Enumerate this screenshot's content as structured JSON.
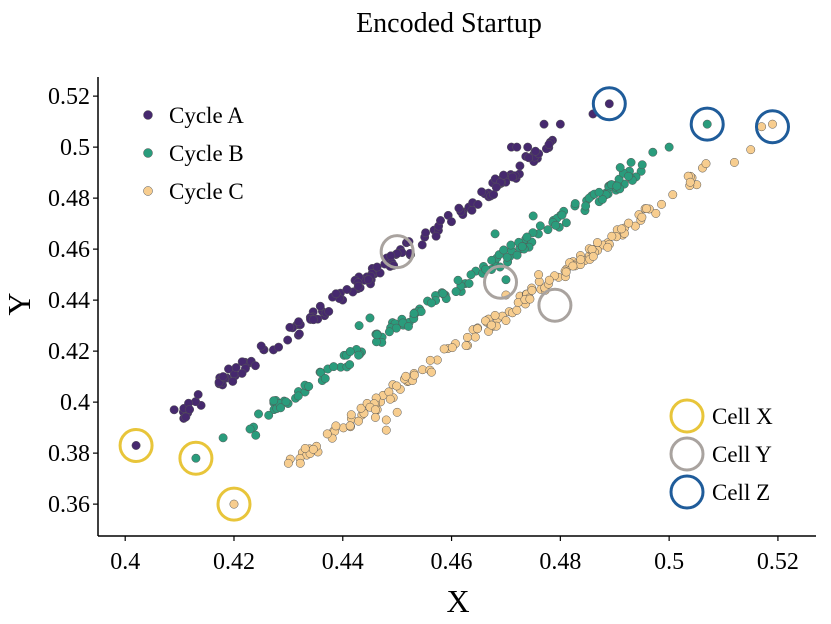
{
  "chart_data": {
    "type": "scatter",
    "title": "Encoded Startup",
    "xlabel": "X",
    "ylabel": "Y",
    "xlim": [
      0.395,
      0.527
    ],
    "ylim": [
      0.3475,
      0.5275
    ],
    "xticks": [
      0.4,
      0.42,
      0.44,
      0.46,
      0.48,
      0.5,
      0.52
    ],
    "xtick_labels": [
      "0.4",
      "0.42",
      "0.44",
      "0.46",
      "0.48",
      "0.5",
      "0.52"
    ],
    "yticks": [
      0.36,
      0.38,
      0.4,
      0.42,
      0.44,
      0.46,
      0.48,
      0.5,
      0.52
    ],
    "ytick_labels": [
      "0.36",
      "0.38",
      "0.4",
      "0.42",
      "0.44",
      "0.46",
      "0.48",
      "0.5",
      "0.52"
    ],
    "grid": false,
    "legend_position": "top-left",
    "series": [
      {
        "name": "Cycle A",
        "color": "#46296e",
        "x0": 0.402,
        "y0": 0.383,
        "x1": 0.489,
        "y1": 0.517,
        "points": [
          [
            0.402,
            0.383
          ],
          [
            0.409,
            0.397
          ],
          [
            0.489,
            0.517
          ],
          [
            0.486,
            0.513
          ],
          [
            0.48,
            0.509
          ],
          [
            0.477,
            0.509
          ],
          [
            0.471,
            0.5
          ],
          [
            0.472,
            0.5
          ],
          [
            0.474,
            0.5
          ],
          [
            0.418,
            0.41
          ],
          [
            0.419,
            0.413
          ],
          [
            0.425,
            0.422
          ]
        ]
      },
      {
        "name": "Cycle B",
        "color": "#2a9c7c",
        "x0": 0.413,
        "y0": 0.378,
        "x1": 0.507,
        "y1": 0.509,
        "points": [
          [
            0.413,
            0.378
          ],
          [
            0.418,
            0.386
          ],
          [
            0.424,
            0.387
          ],
          [
            0.507,
            0.509
          ],
          [
            0.5,
            0.5
          ],
          [
            0.497,
            0.498
          ],
          [
            0.493,
            0.494
          ],
          [
            0.491,
            0.492
          ],
          [
            0.47,
            0.448
          ],
          [
            0.473,
            0.461
          ],
          [
            0.475,
            0.473
          ],
          [
            0.468,
            0.466
          ],
          [
            0.445,
            0.433
          ],
          [
            0.443,
            0.43
          ]
        ]
      },
      {
        "name": "Cycle C",
        "color": "#f7cd8f",
        "x0": 0.42,
        "y0": 0.36,
        "x1": 0.519,
        "y1": 0.509,
        "points": [
          [
            0.42,
            0.36
          ],
          [
            0.43,
            0.376
          ],
          [
            0.519,
            0.509
          ],
          [
            0.517,
            0.508
          ],
          [
            0.515,
            0.499
          ],
          [
            0.512,
            0.494
          ],
          [
            0.445,
            0.398
          ],
          [
            0.446,
            0.397
          ],
          [
            0.448,
            0.389
          ],
          [
            0.446,
            0.394
          ],
          [
            0.448,
            0.393
          ],
          [
            0.45,
            0.396
          ],
          [
            0.47,
            0.432
          ],
          [
            0.468,
            0.434
          ],
          [
            0.47,
            0.442
          ],
          [
            0.472,
            0.436
          ],
          [
            0.476,
            0.45
          ]
        ]
      }
    ],
    "callouts": [
      {
        "name": "Cell X",
        "color": "#e8c53a",
        "points": [
          [
            0.402,
            0.383
          ],
          [
            0.413,
            0.378
          ],
          [
            0.42,
            0.36
          ]
        ]
      },
      {
        "name": "Cell Y",
        "color": "#a9a39f",
        "points": [
          [
            0.45,
            0.459
          ],
          [
            0.469,
            0.447
          ],
          [
            0.479,
            0.438
          ]
        ]
      },
      {
        "name": "Cell Z",
        "color": "#1f5c9a",
        "points": [
          [
            0.489,
            0.517
          ],
          [
            0.507,
            0.509
          ],
          [
            0.519,
            0.508
          ]
        ]
      }
    ]
  }
}
